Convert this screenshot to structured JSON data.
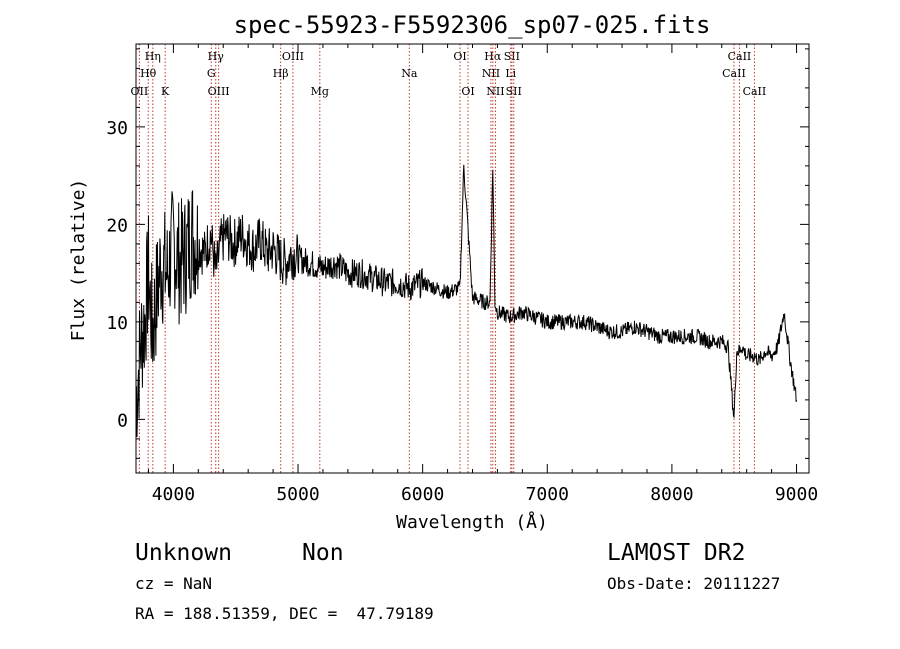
{
  "chart_data": {
    "type": "line",
    "title": "spec-55923-F5592306_sp07-025.fits",
    "xlabel": "Wavelength (Å)",
    "ylabel": "Flux (relative)",
    "xlim": [
      3700,
      9100
    ],
    "ylim": [
      -5.5,
      38.5
    ],
    "xticks": [
      4000,
      5000,
      6000,
      7000,
      8000,
      9000
    ],
    "yticks": [
      0,
      10,
      20,
      30
    ],
    "xtick_labels": [
      "4000",
      "5000",
      "6000",
      "7000",
      "8000",
      "9000"
    ],
    "ytick_labels": [
      "0",
      "10",
      "20",
      "30"
    ],
    "series": [
      {
        "name": "flux",
        "color": "#000000",
        "x": [
          3700,
          3740,
          3770,
          3800,
          3830,
          3860,
          3900,
          3950,
          4000,
          4050,
          4100,
          4150,
          4200,
          4250,
          4300,
          4340,
          4380,
          4420,
          4480,
          4550,
          4600,
          4650,
          4700,
          4750,
          4800,
          4850,
          4900,
          4950,
          5000,
          5100,
          5200,
          5300,
          5400,
          5500,
          5600,
          5700,
          5800,
          5900,
          6000,
          6100,
          6200,
          6300,
          6330,
          6400,
          6500,
          6540,
          6563,
          6580,
          6600,
          6700,
          6800,
          6900,
          7000,
          7100,
          7200,
          7300,
          7400,
          7500,
          7600,
          7700,
          7800,
          7900,
          8000,
          8100,
          8200,
          8300,
          8400,
          8450,
          8498,
          8520,
          8542,
          8560,
          8600,
          8662,
          8700,
          8750,
          8800,
          8850,
          8900,
          8950,
          9000
        ],
        "values": [
          2,
          8,
          10,
          15,
          9,
          12,
          16,
          15,
          18,
          16,
          17,
          19,
          18,
          17,
          19,
          15,
          18,
          19,
          18,
          19,
          18,
          17.5,
          18.5,
          17,
          17.5,
          16.5,
          16,
          17,
          16.5,
          16,
          15.5,
          16,
          15,
          15,
          14.5,
          14,
          14,
          13.5,
          14,
          13.5,
          13,
          13.5,
          26,
          12.5,
          12,
          12,
          26,
          12,
          11,
          10.5,
          11,
          10.5,
          10,
          10,
          10,
          10,
          9.5,
          9,
          9,
          9.5,
          9,
          8.5,
          8.5,
          8.5,
          8.5,
          8,
          8,
          7.5,
          0,
          7,
          7,
          7.5,
          6.5,
          6.5,
          6,
          7,
          6.5,
          7.5,
          11,
          6,
          2
        ]
      }
    ],
    "lines": [
      {
        "label": "OII",
        "wavelength": 3727,
        "row": 3
      },
      {
        "label": "Hθ",
        "wavelength": 3798,
        "row": 2
      },
      {
        "label": "Hη",
        "wavelength": 3835,
        "row": 1
      },
      {
        "label": "K",
        "wavelength": 3934,
        "row": 3
      },
      {
        "label": "Hγ",
        "wavelength": 4340,
        "row": 1
      },
      {
        "label": "G",
        "wavelength": 4304,
        "row": 2
      },
      {
        "label": "OIII",
        "wavelength": 4363,
        "row": 3
      },
      {
        "label": "OIII",
        "wavelength": 4959,
        "row": 1
      },
      {
        "label": "Hβ",
        "wavelength": 4861,
        "row": 2
      },
      {
        "label": "Mg",
        "wavelength": 5175,
        "row": 3
      },
      {
        "label": "Na",
        "wavelength": 5893,
        "row": 2
      },
      {
        "label": "OI",
        "wavelength": 6300,
        "row": 1
      },
      {
        "label": "OI",
        "wavelength": 6364,
        "row": 3
      },
      {
        "label": "Hα",
        "wavelength": 6563,
        "row": 1
      },
      {
        "label": "SII",
        "wavelength": 6716,
        "row": 1
      },
      {
        "label": "NII",
        "wavelength": 6548,
        "row": 2
      },
      {
        "label": "Li",
        "wavelength": 6707,
        "row": 2
      },
      {
        "label": "NII",
        "wavelength": 6584,
        "row": 3
      },
      {
        "label": "SII",
        "wavelength": 6731,
        "row": 3
      },
      {
        "label": "CaII",
        "wavelength": 8542,
        "row": 1
      },
      {
        "label": "CaII",
        "wavelength": 8498,
        "row": 2
      },
      {
        "label": "CaII",
        "wavelength": 8662,
        "row": 3
      }
    ]
  },
  "info": {
    "class": "Unknown",
    "subclass": "Non",
    "survey": "LAMOST DR2",
    "cz": "cz = NaN",
    "obs_date": "Obs-Date: 20111227",
    "coords": "RA = 188.51359, DEC =  47.79189"
  },
  "colors": {
    "line_marker": "#c0392b",
    "spectrum": "#000000"
  }
}
